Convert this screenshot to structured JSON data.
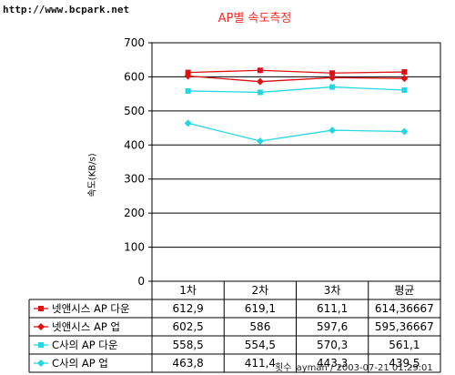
{
  "watermark": "http://www.bcpark.net",
  "footer": {
    "xlabel": "횟수",
    "credit": "ayman / 2003-07-21 01:29:01"
  },
  "chart_data": {
    "type": "line",
    "title": "AP별 속도측정",
    "xlabel": "횟수",
    "ylabel": "속도(KB/s)",
    "ylim": [
      0,
      700
    ],
    "yticks": [
      0,
      100,
      200,
      300,
      400,
      500,
      600,
      700
    ],
    "grid": true,
    "categories": [
      "1차",
      "2차",
      "3차",
      "평균"
    ],
    "series": [
      {
        "name": "넷앤시스 AP 다운",
        "color": "#dd1111",
        "marker": "square",
        "values": [
          612.9,
          619.1,
          611.1,
          614.36667
        ],
        "labels": [
          "612,9",
          "619,1",
          "611,1",
          "614,36667"
        ]
      },
      {
        "name": "넷앤시스 AP 업",
        "color": "#dd1111",
        "marker": "diamond",
        "values": [
          602.5,
          586,
          597.6,
          595.36667
        ],
        "labels": [
          "602,5",
          "586",
          "597,6",
          "595,36667"
        ]
      },
      {
        "name": "C사의 AP 다운",
        "color": "#22d8e0",
        "marker": "square",
        "values": [
          558.5,
          554.5,
          570.3,
          561.1
        ],
        "labels": [
          "558,5",
          "554,5",
          "570,3",
          "561,1"
        ]
      },
      {
        "name": "C사의 AP 업",
        "color": "#22d8e0",
        "marker": "diamond",
        "values": [
          463.8,
          411.4,
          443.3,
          439.5
        ],
        "labels": [
          "463,8",
          "411,4",
          "443,3",
          "439,5"
        ]
      }
    ]
  }
}
